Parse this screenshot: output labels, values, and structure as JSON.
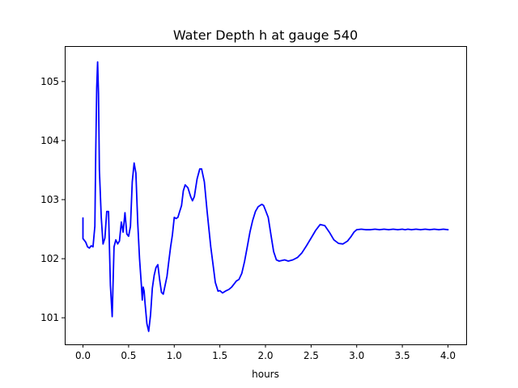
{
  "chart_data": {
    "type": "line",
    "title": "Water Depth h at gauge 540",
    "xlabel": "hours",
    "ylabel": "",
    "xlim": [
      -0.2,
      4.2
    ],
    "ylim": [
      100.55,
      105.6
    ],
    "xticks": [
      0.0,
      0.5,
      1.0,
      1.5,
      2.0,
      2.5,
      3.0,
      3.5,
      4.0
    ],
    "xtick_labels": [
      "0.0",
      "0.5",
      "1.0",
      "1.5",
      "2.0",
      "2.5",
      "3.0",
      "3.5",
      "4.0"
    ],
    "yticks": [
      101,
      102,
      103,
      104,
      105
    ],
    "ytick_labels": [
      "101",
      "102",
      "103",
      "104",
      "105"
    ],
    "grid": false,
    "legend": "none",
    "series": [
      {
        "color": "#0000ff",
        "x": [
          0.0,
          0.0,
          0.01,
          0.03,
          0.05,
          0.07,
          0.09,
          0.11,
          0.13,
          0.14,
          0.15,
          0.16,
          0.17,
          0.18,
          0.2,
          0.22,
          0.24,
          0.26,
          0.28,
          0.3,
          0.32,
          0.34,
          0.36,
          0.38,
          0.4,
          0.42,
          0.44,
          0.46,
          0.48,
          0.5,
          0.52,
          0.54,
          0.56,
          0.58,
          0.6,
          0.62,
          0.64,
          0.65,
          0.66,
          0.67,
          0.68,
          0.7,
          0.72,
          0.74,
          0.76,
          0.78,
          0.8,
          0.82,
          0.84,
          0.86,
          0.88,
          0.9,
          0.92,
          0.94,
          0.96,
          0.98,
          1.0,
          1.02,
          1.04,
          1.06,
          1.08,
          1.1,
          1.12,
          1.15,
          1.18,
          1.2,
          1.22,
          1.25,
          1.28,
          1.3,
          1.33,
          1.36,
          1.4,
          1.43,
          1.45,
          1.48,
          1.5,
          1.53,
          1.56,
          1.6,
          1.63,
          1.66,
          1.68,
          1.71,
          1.74,
          1.77,
          1.8,
          1.83,
          1.86,
          1.89,
          1.92,
          1.94,
          1.96,
          1.98,
          2.0,
          2.03,
          2.06,
          2.09,
          2.12,
          2.15,
          2.18,
          2.21,
          2.25,
          2.3,
          2.35,
          2.4,
          2.45,
          2.5,
          2.55,
          2.6,
          2.65,
          2.7,
          2.75,
          2.8,
          2.85,
          2.9,
          2.94,
          2.97,
          3.0,
          3.05,
          3.1,
          3.15,
          3.2,
          3.25,
          3.3,
          3.35,
          3.4,
          3.45,
          3.5,
          3.53,
          3.56,
          3.6,
          3.65,
          3.7,
          3.75,
          3.8,
          3.85,
          3.9,
          3.95,
          4.0
        ],
        "y": [
          102.69,
          102.34,
          102.32,
          102.28,
          102.2,
          102.18,
          102.22,
          102.2,
          102.55,
          103.8,
          104.9,
          105.33,
          104.8,
          103.5,
          102.7,
          102.25,
          102.35,
          102.8,
          102.8,
          101.55,
          101.02,
          102.2,
          102.32,
          102.25,
          102.3,
          102.62,
          102.45,
          102.78,
          102.42,
          102.38,
          102.55,
          103.3,
          103.62,
          103.45,
          102.6,
          102.0,
          101.55,
          101.3,
          101.52,
          101.45,
          101.25,
          100.9,
          100.77,
          101.05,
          101.5,
          101.72,
          101.85,
          101.9,
          101.65,
          101.43,
          101.4,
          101.55,
          101.7,
          101.95,
          102.2,
          102.4,
          102.7,
          102.68,
          102.7,
          102.8,
          102.9,
          103.15,
          103.25,
          103.2,
          103.05,
          102.98,
          103.05,
          103.35,
          103.52,
          103.52,
          103.3,
          102.8,
          102.2,
          101.85,
          101.6,
          101.45,
          101.46,
          101.42,
          101.45,
          101.48,
          101.52,
          101.58,
          101.62,
          101.65,
          101.75,
          101.95,
          102.2,
          102.45,
          102.65,
          102.8,
          102.88,
          102.9,
          102.92,
          102.9,
          102.82,
          102.7,
          102.4,
          102.12,
          101.98,
          101.96,
          101.97,
          101.98,
          101.96,
          101.98,
          102.02,
          102.1,
          102.22,
          102.35,
          102.48,
          102.58,
          102.56,
          102.45,
          102.32,
          102.26,
          102.25,
          102.3,
          102.38,
          102.45,
          102.49,
          102.5,
          102.49,
          102.49,
          102.5,
          102.49,
          102.5,
          102.49,
          102.5,
          102.49,
          102.5,
          102.49,
          102.5,
          102.49,
          102.5,
          102.49,
          102.5,
          102.49,
          102.5,
          102.49,
          102.5,
          102.49
        ]
      }
    ]
  }
}
